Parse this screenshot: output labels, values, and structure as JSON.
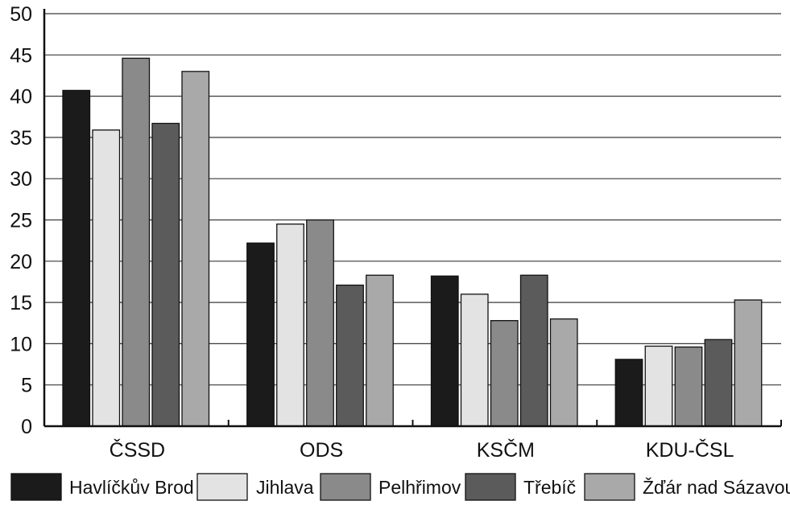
{
  "chart_data": {
    "type": "bar",
    "categories": [
      "ČSSD",
      "ODS",
      "KSČM",
      "KDU-ČSL"
    ],
    "series": [
      {
        "name": "Havlíčkův Brod",
        "values": [
          40.7,
          22.2,
          18.2,
          8.1
        ],
        "color": "#1b1b1b"
      },
      {
        "name": "Jihlava",
        "values": [
          35.9,
          24.5,
          16.0,
          9.7
        ],
        "color": "#e3e3e3"
      },
      {
        "name": "Pelhřimov",
        "values": [
          44.6,
          25.0,
          12.8,
          9.6
        ],
        "color": "#8a8a8a"
      },
      {
        "name": "Třebíč",
        "values": [
          36.7,
          17.1,
          18.3,
          10.5
        ],
        "color": "#5b5b5b"
      },
      {
        "name": "Žďár nad Sázavou",
        "values": [
          43.0,
          18.3,
          13.0,
          15.3
        ],
        "color": "#a9a9a9"
      }
    ],
    "y_ticks": [
      "0",
      "5",
      "10",
      "15",
      "20",
      "25",
      "30",
      "35",
      "40",
      "45",
      "50"
    ],
    "ylim": [
      0,
      50
    ],
    "grid": true,
    "legend_position": "bottom"
  }
}
